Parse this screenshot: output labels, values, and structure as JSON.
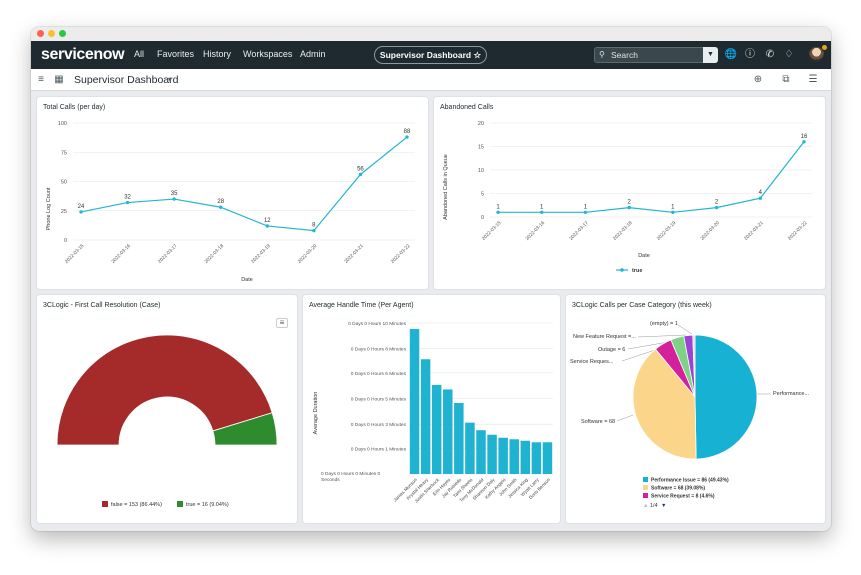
{
  "colors": {
    "nav_bg": "#1e2a2f",
    "line": "#23b5d3",
    "donut_false": "#a52a2a",
    "donut_true": "#2e8b2e",
    "bar": "#1fb3d1"
  },
  "nav": {
    "logo": "servicenow",
    "menu": [
      "All",
      "Favorites",
      "History",
      "Workspaces",
      "Admin"
    ],
    "pill_label": "Supervisor Dashboard ☆",
    "search_placeholder": "Search"
  },
  "subnav": {
    "title": "Supervisor Dashboard",
    "caret": "▾"
  },
  "charts": {
    "total_calls": {
      "title": "Total Calls (per day)",
      "xlabel": "Date",
      "ylabel": "Phone Log Count"
    },
    "abandoned": {
      "title": "Abandoned Calls",
      "xlabel": "Date",
      "ylabel": "Abandoned Calls in Queue",
      "legend": "true"
    },
    "fcr": {
      "title": "3CLogic - First Call Resolution (Case)",
      "legend_false": "false = 153 (86.44%)",
      "legend_true": "true = 16 (9.04%)"
    },
    "aht": {
      "title": "Average Handle Time (Per Agent)",
      "ylabel": "Average Duration"
    },
    "category": {
      "title": "3CLogic Calls per Case Category (this week)",
      "labels": {
        "empty": "(empty) = 1",
        "newfeature": "New Feature Request =...",
        "outage": "Outage = 6",
        "servicereq": "Service Reques...",
        "software": "Software = 68",
        "performance": "Performance..."
      },
      "legend": [
        "Performance Issue = 86 (49.43%)",
        "Software = 68 (39.08%)",
        "Service Request = 8 (4.6%)"
      ],
      "pager": "1/4"
    }
  },
  "chart_data": [
    {
      "type": "line",
      "title": "Total Calls (per day)",
      "xlabel": "Date",
      "ylabel": "Phone Log Count",
      "x": [
        "2022-03-15",
        "2022-03-16",
        "2022-03-17",
        "2022-03-18",
        "2022-03-19",
        "2022-03-20",
        "2022-03-21",
        "2022-03-22"
      ],
      "values": [
        24,
        32,
        35,
        28,
        12,
        8,
        56,
        88
      ],
      "yticks": [
        0,
        25,
        50,
        75,
        100
      ],
      "ylim": [
        0,
        100
      ]
    },
    {
      "type": "line",
      "title": "Abandoned Calls",
      "xlabel": "Date",
      "ylabel": "Abandoned Calls in Queue",
      "x": [
        "2022-03-15",
        "2022-03-16",
        "2022-03-17",
        "2022-03-18",
        "2022-03-19",
        "2022-03-20",
        "2022-03-21",
        "2022-03-22"
      ],
      "series": [
        {
          "name": "true",
          "values": [
            1,
            1,
            1,
            2,
            1,
            2,
            4,
            16
          ]
        }
      ],
      "yticks": [
        0,
        5,
        10,
        15,
        20
      ],
      "ylim": [
        0,
        20
      ],
      "legend": "bottom"
    },
    {
      "type": "pie",
      "subtype": "semi-donut",
      "title": "3CLogic - First Call Resolution (Case)",
      "slices": [
        {
          "name": "false",
          "value": 153,
          "percent": 86.44
        },
        {
          "name": "true",
          "value": 16,
          "percent": 9.04
        }
      ]
    },
    {
      "type": "bar",
      "title": "Average Handle Time (Per Agent)",
      "ylabel": "Average Duration",
      "categories": [
        "James Munson",
        "Krystal Heavy",
        "Justin Sherbock",
        "Erin Hayes",
        "Jay Robledo",
        "Tami Sheets",
        "Tony McDonald",
        "Shannon Daly",
        "Kathy Angelo",
        "John Smith",
        "Jessica King",
        "Wyatt Larry",
        "Doris Benson"
      ],
      "values_minutes": [
        9.6,
        7.6,
        5.9,
        5.6,
        4.7,
        3.4,
        2.9,
        2.6,
        2.4,
        2.3,
        2.2,
        2.1,
        2.1
      ],
      "yticks": [
        "0 Days 0 Hours 0 Minutes 0 Seconds",
        "0 Days 0 Hours 1 Minutes",
        "0 Days 0 Hours 3 Minutes",
        "0 Days 0 Hours 5 Minutes",
        "0 Days 0 Hours 6 Minutes",
        "0 Days 0 Hours 8 Minutes",
        "0 Days 0 Hours 10 Minutes"
      ],
      "ytick_values_minutes": [
        0,
        1.7,
        3.3,
        5,
        6.7,
        8.3,
        10
      ],
      "ylim": [
        0,
        10
      ]
    },
    {
      "type": "pie",
      "title": "3CLogic Calls per Case Category (this week)",
      "slices": [
        {
          "name": "Performance Issue",
          "value": 86,
          "percent": 49.43,
          "color": "#16b1d3"
        },
        {
          "name": "Software",
          "value": 68,
          "percent": 39.08,
          "color": "#fbd58a"
        },
        {
          "name": "Service Request",
          "value": 8,
          "percent": 4.6,
          "color": "#d4209a"
        },
        {
          "name": "Outage",
          "value": 6,
          "color": "#7ed285"
        },
        {
          "name": "New Feature Request",
          "value": 4,
          "color": "#9b43d2"
        },
        {
          "name": "(empty)",
          "value": 1,
          "color": "#d9d9d9"
        }
      ]
    }
  ]
}
